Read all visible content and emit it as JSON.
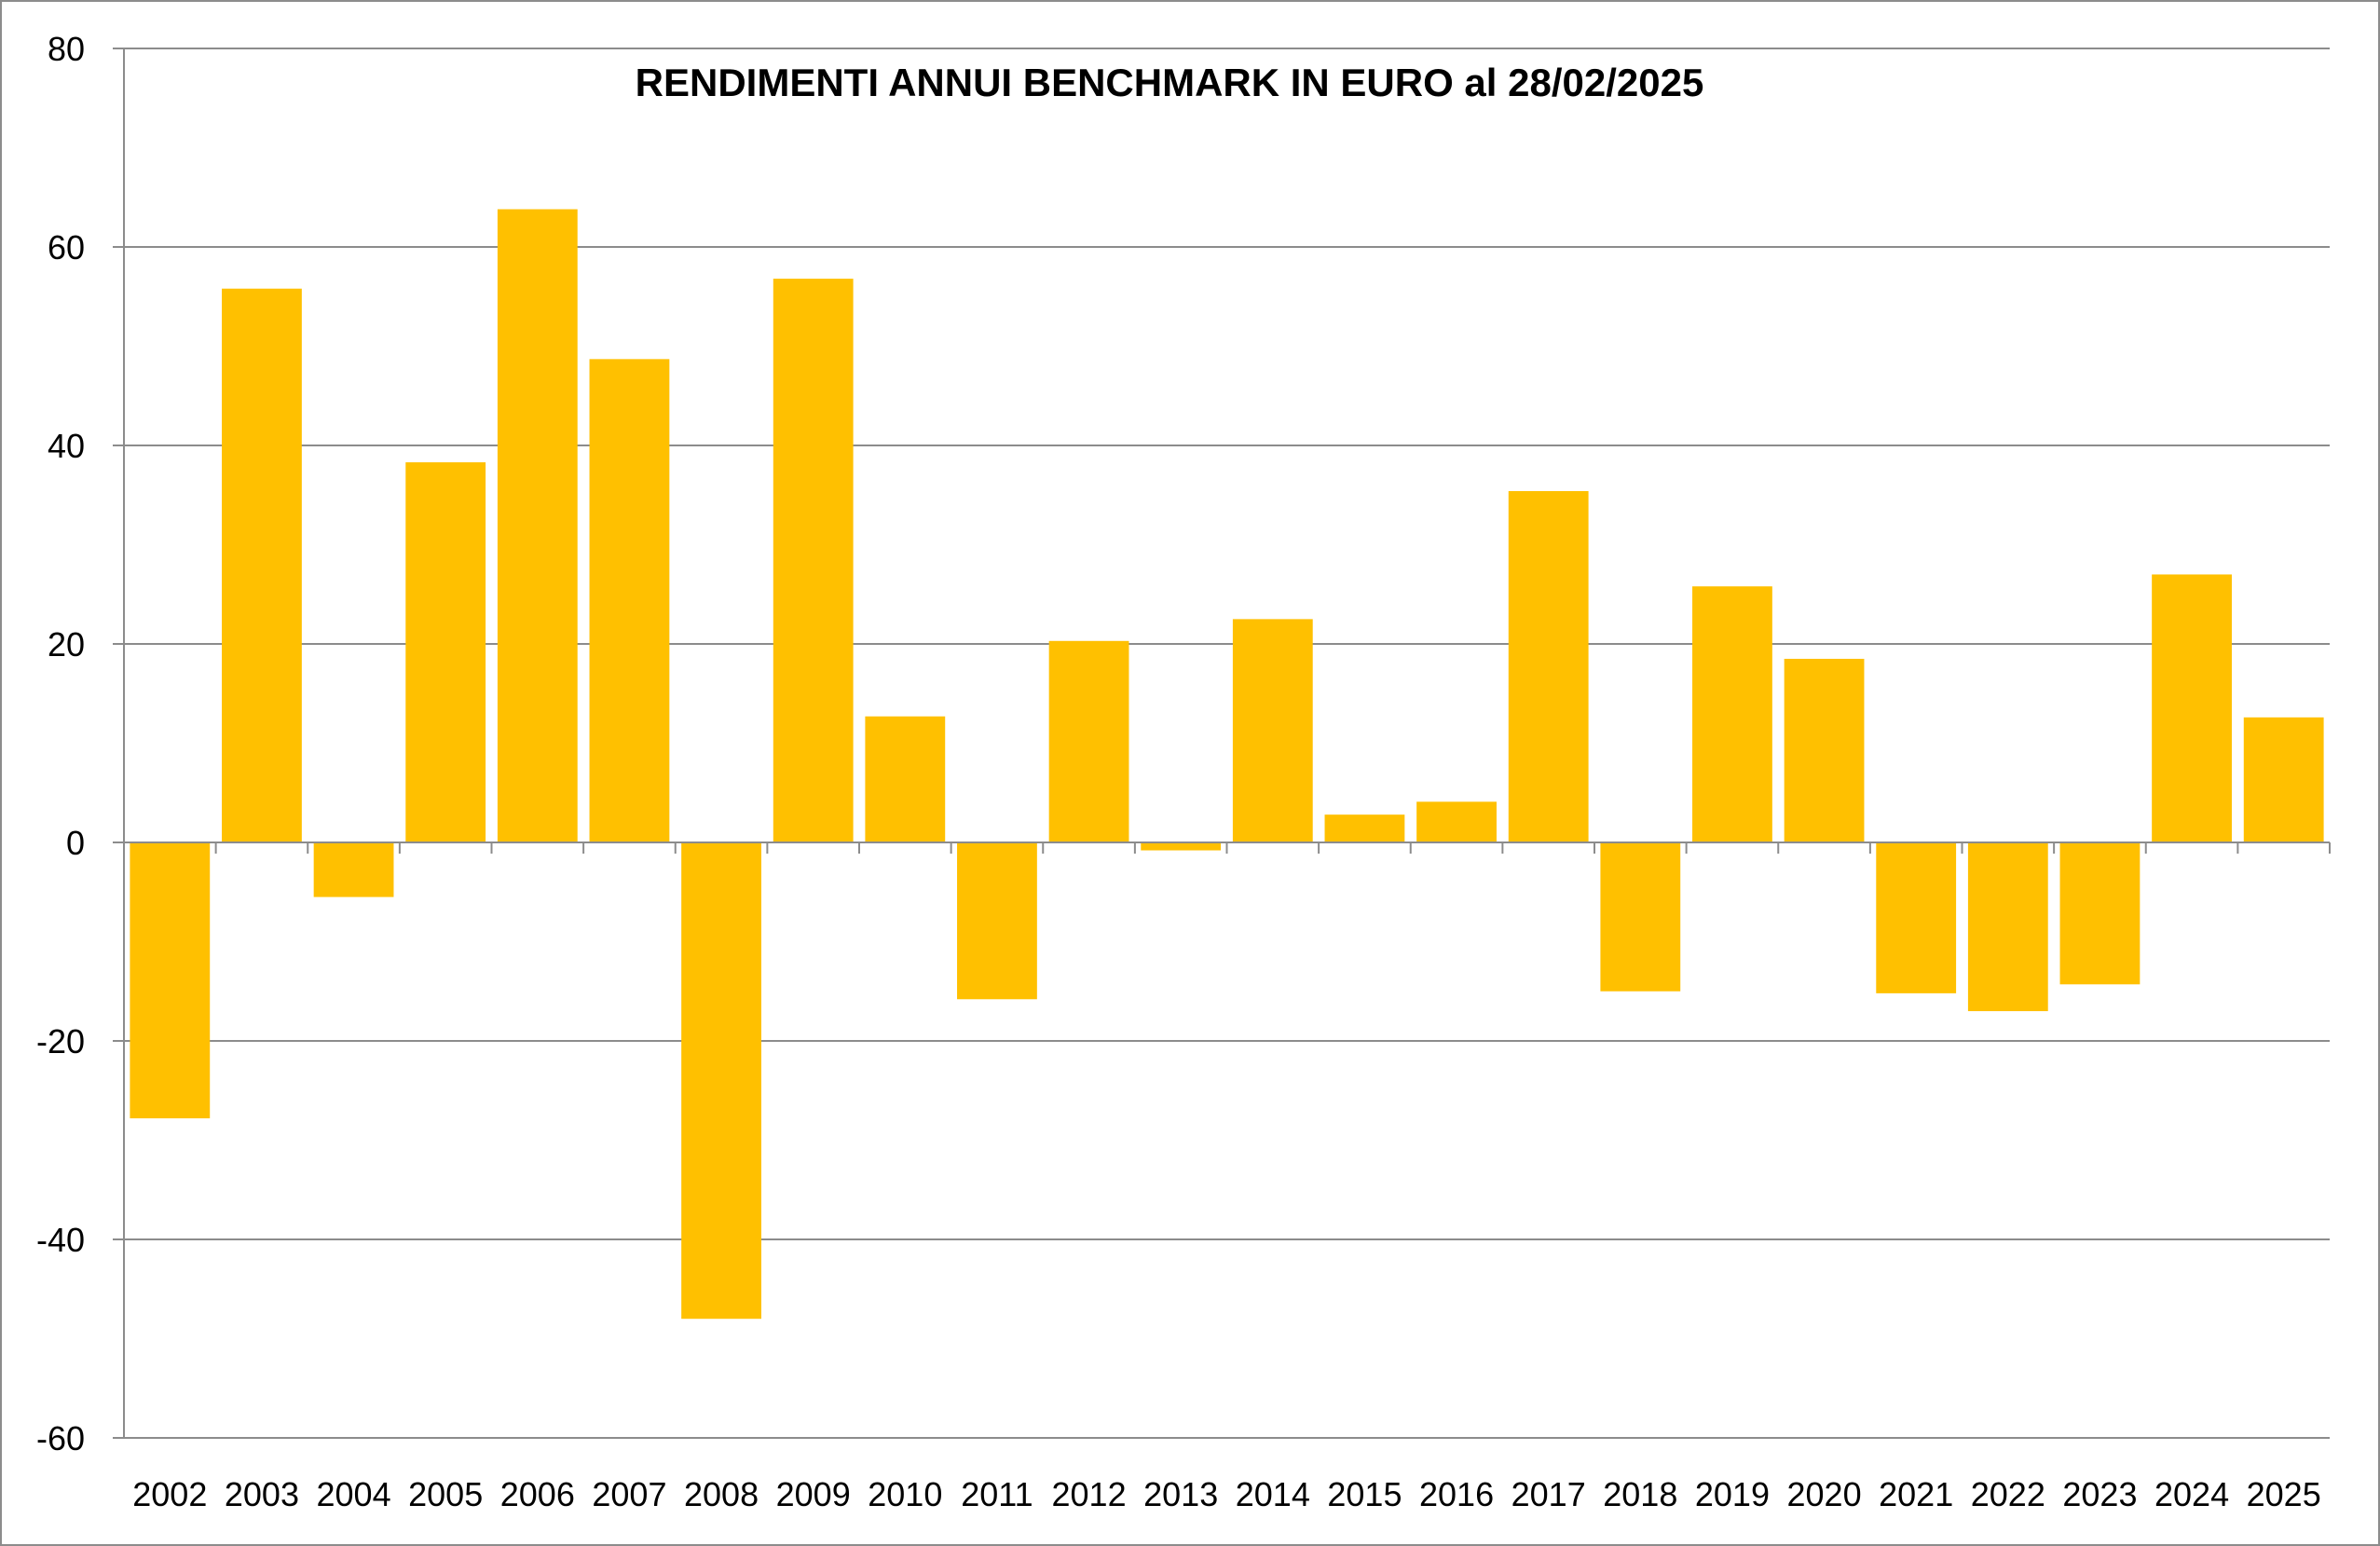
{
  "chart_data": {
    "type": "bar",
    "title": "RENDIMENTI ANNUI BENCHMARK IN EURO al 28/02/2025",
    "categories": [
      "2002",
      "2003",
      "2004",
      "2005",
      "2006",
      "2007",
      "2008",
      "2009",
      "2010",
      "2011",
      "2012",
      "2013",
      "2014",
      "2015",
      "2016",
      "2017",
      "2018",
      "2019",
      "2020",
      "2021",
      "2022",
      "2023",
      "2024",
      "2025"
    ],
    "series": [
      {
        "values": [
          -27.8,
          55.8,
          -5.5,
          38.3,
          63.8,
          48.7,
          -48.0,
          56.8,
          12.7,
          -15.8,
          20.3,
          -0.8,
          22.5,
          2.8,
          4.1,
          35.4,
          -15.0,
          25.8,
          18.5,
          -15.2,
          -17.0,
          -14.3,
          27.0,
          12.6
        ],
        "color": "#FFC000"
      }
    ],
    "ylim": [
      -60,
      80
    ],
    "yticks": [
      80,
      60,
      40,
      20,
      0,
      -20,
      -40,
      -60
    ],
    "grid": true,
    "legend": "none"
  }
}
